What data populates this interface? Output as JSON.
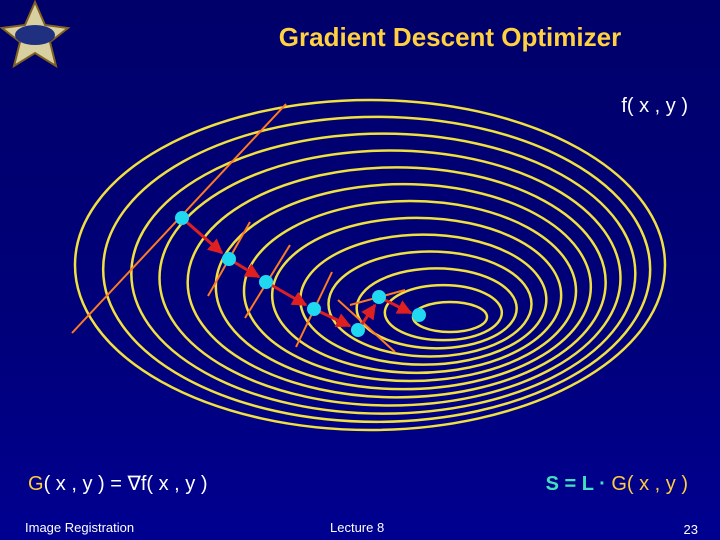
{
  "header": {
    "title": "Gradient Descent Optimizer"
  },
  "labels": {
    "function": "f( x , y )"
  },
  "formula_left": {
    "symbol": "G",
    "rest": "( x , y ) = ∇f( x , y )"
  },
  "formula_right": {
    "lhs": "S = L · ",
    "rhs": "G( x , y )"
  },
  "footer": {
    "left": "Image Registration",
    "center": "Lecture 8",
    "page": "23"
  }
}
